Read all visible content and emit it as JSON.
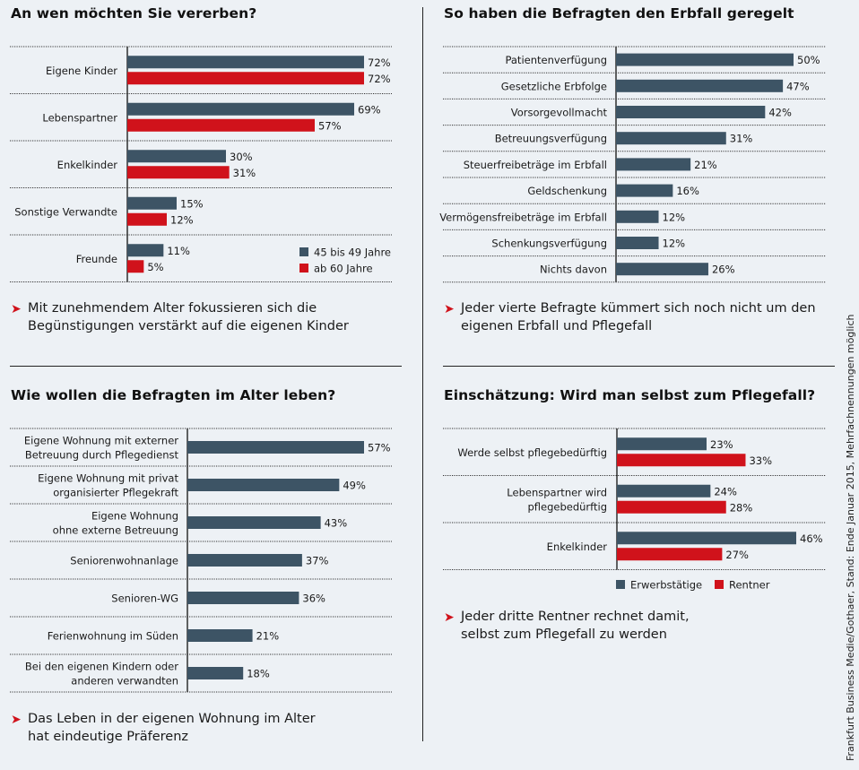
{
  "colors": {
    "dark": "#3d5465",
    "red": "#d0121b",
    "background": "#edf1f5"
  },
  "source": "Frankfurt Business Medie/Gothaer, Stand: Ende Januar 2015, Mehrfachnennungen möglich",
  "chart_data": [
    {
      "type": "bar",
      "orientation": "horizontal",
      "title": "An wen möchten Sie vererben?",
      "categories": [
        "Eigene Kinder",
        "Lebenspartner",
        "Enkelkinder",
        "Sonstige Verwandte",
        "Freunde"
      ],
      "series": [
        {
          "name": "45 bis 49 Jahre",
          "color": "#3d5465",
          "values": [
            72,
            69,
            30,
            15,
            11
          ]
        },
        {
          "name": "ab 60 Jahre",
          "color": "#d0121b",
          "values": [
            72,
            57,
            31,
            12,
            5
          ]
        }
      ],
      "value_suffix": "%",
      "legend_position": "bottom-right",
      "note": "Mit zunehmendem Alter fokussieren sich die Begünstigungen verstärkt auf die eigenen Kinder",
      "note_lines": [
        "Mit zunehmendem Alter fokussieren sich die",
        "Begünstigungen verstärkt auf die eigenen Kinder"
      ]
    },
    {
      "type": "bar",
      "orientation": "horizontal",
      "title": "So haben die Befragten den Erbfall geregelt",
      "categories": [
        "Patientenverfügung",
        "Gesetzliche Erbfolge",
        "Vorsorgevollmacht",
        "Betreuungsverfügung",
        "Steuerfreibeträge im Erbfall",
        "Geldschenkung",
        "Vermögensfreibeträge im Erbfall",
        "Schenkungsverfügung",
        "Nichts davon"
      ],
      "series": [
        {
          "name": "",
          "color": "#3d5465",
          "values": [
            50,
            47,
            42,
            31,
            21,
            16,
            12,
            12,
            26
          ]
        }
      ],
      "value_suffix": "%",
      "note": "Jeder vierte Befragte kümmert sich noch nicht um den eigenen Erbfall und Pflegefall",
      "note_lines": [
        "Jeder vierte Befragte kümmert sich noch nicht um den",
        "eigenen Erbfall und Pflegefall"
      ]
    },
    {
      "type": "bar",
      "orientation": "horizontal",
      "title": "Wie wollen die Befragten im Alter leben?",
      "categories": [
        [
          "Eigene Wohnung mit externer",
          "Betreuung durch Pflegedienst"
        ],
        [
          "Eigene Wohnung mit privat",
          "organisierter Pflegekraft"
        ],
        [
          "Eigene Wohnung",
          "ohne externe Betreuung"
        ],
        [
          "Seniorenwohnanlage"
        ],
        [
          "Senioren-WG"
        ],
        [
          "Ferienwohnung im Süden"
        ],
        [
          "Bei den eigenen Kindern oder",
          "anderen verwandten"
        ]
      ],
      "series": [
        {
          "name": "",
          "color": "#3d5465",
          "values": [
            57,
            49,
            43,
            37,
            36,
            21,
            18
          ]
        }
      ],
      "value_suffix": "%",
      "note": "Das Leben in der eigenen Wohnung im Alter hat eindeutige Präferenz",
      "note_lines": [
        "Das Leben in der eigenen Wohnung im Alter",
        "hat eindeutige Präferenz"
      ]
    },
    {
      "type": "bar",
      "orientation": "horizontal",
      "title": "Einschätzung: Wird man selbst zum Pflegefall?",
      "categories": [
        [
          "Werde selbst pflegebedürftig"
        ],
        [
          "Lebenspartner wird",
          "pflegebedürftig"
        ],
        [
          "Enkelkinder"
        ]
      ],
      "series": [
        {
          "name": "Erwerbstätige",
          "color": "#3d5465",
          "values": [
            23,
            24,
            46
          ]
        },
        {
          "name": "Rentner",
          "color": "#d0121b",
          "values": [
            33,
            28,
            27
          ]
        }
      ],
      "value_suffix": "%",
      "legend_position": "bottom",
      "note": "Jeder dritte Rentner rechnet damit, selbst zum Pflegefall zu werden",
      "note_lines": [
        "Jeder dritte Rentner rechnet damit,",
        "selbst zum Pflegefall zu werden"
      ]
    }
  ]
}
